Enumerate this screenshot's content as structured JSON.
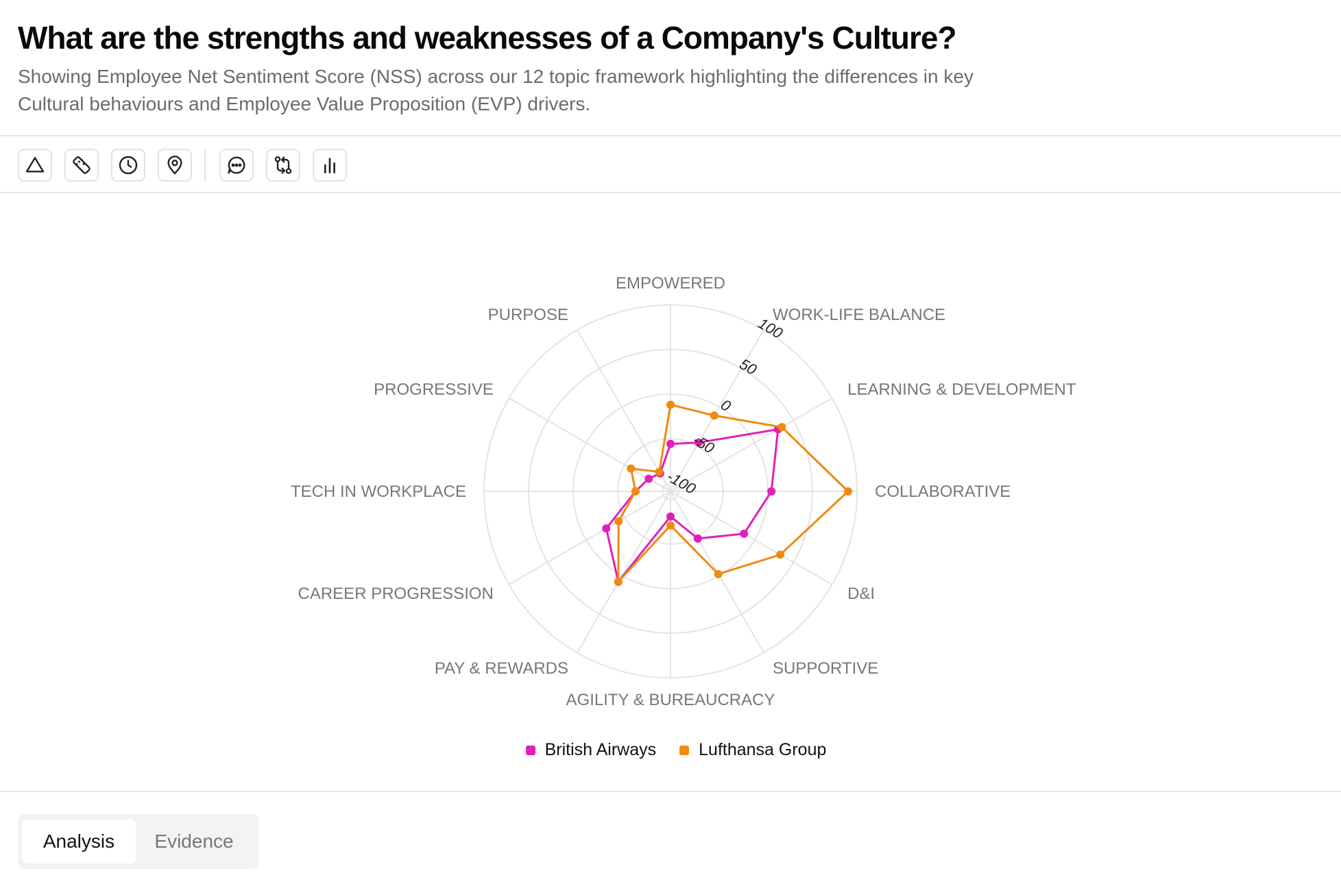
{
  "header": {
    "title": "What are the strengths and weaknesses of a Company's Culture?",
    "subtitle": "Showing Employee Net Sentiment Score (NSS) across our 12 topic framework highlighting the differences in key Cultural behaviours and Employee Value Proposition (EVP) drivers."
  },
  "toolbar": {
    "icons": [
      "triangle-icon",
      "ruler-icon",
      "clock-icon",
      "map-pin-icon",
      "chat-icon",
      "git-compare-icon",
      "bar-chart-icon"
    ]
  },
  "chart_data": {
    "type": "radar",
    "categories": [
      "EMPOWERED",
      "WORK-LIFE BALANCE",
      "LEARNING & DEVELOPMENT",
      "COLLABORATIVE",
      "D&I",
      "SUPPORTIVE",
      "AGILITY & BUREAUCRACY",
      "PAY & REWARDS",
      "CAREER PROGRESSION",
      "TECH IN WORKPLACE",
      "PROGRESSIVE",
      "PURPOSE"
    ],
    "radial_ticks": [
      -100,
      -50,
      0,
      50,
      100
    ],
    "rlim": [
      -100,
      100
    ],
    "grid": true,
    "legend_position": "bottom",
    "series": [
      {
        "name": "British Airways",
        "color": "#e020b8",
        "values": [
          -56,
          -46,
          30,
          4,
          -14,
          -48,
          -81,
          8,
          -26,
          -70,
          -81,
          -86
        ]
      },
      {
        "name": "Lufthansa Group",
        "color": "#f08a10",
        "values": [
          -12,
          -11,
          35,
          90,
          33,
          -2,
          -71,
          8,
          -42,
          -70,
          -58,
          -84
        ]
      }
    ]
  },
  "tabs": [
    {
      "label": "Analysis",
      "active": true
    },
    {
      "label": "Evidence",
      "active": false
    }
  ]
}
